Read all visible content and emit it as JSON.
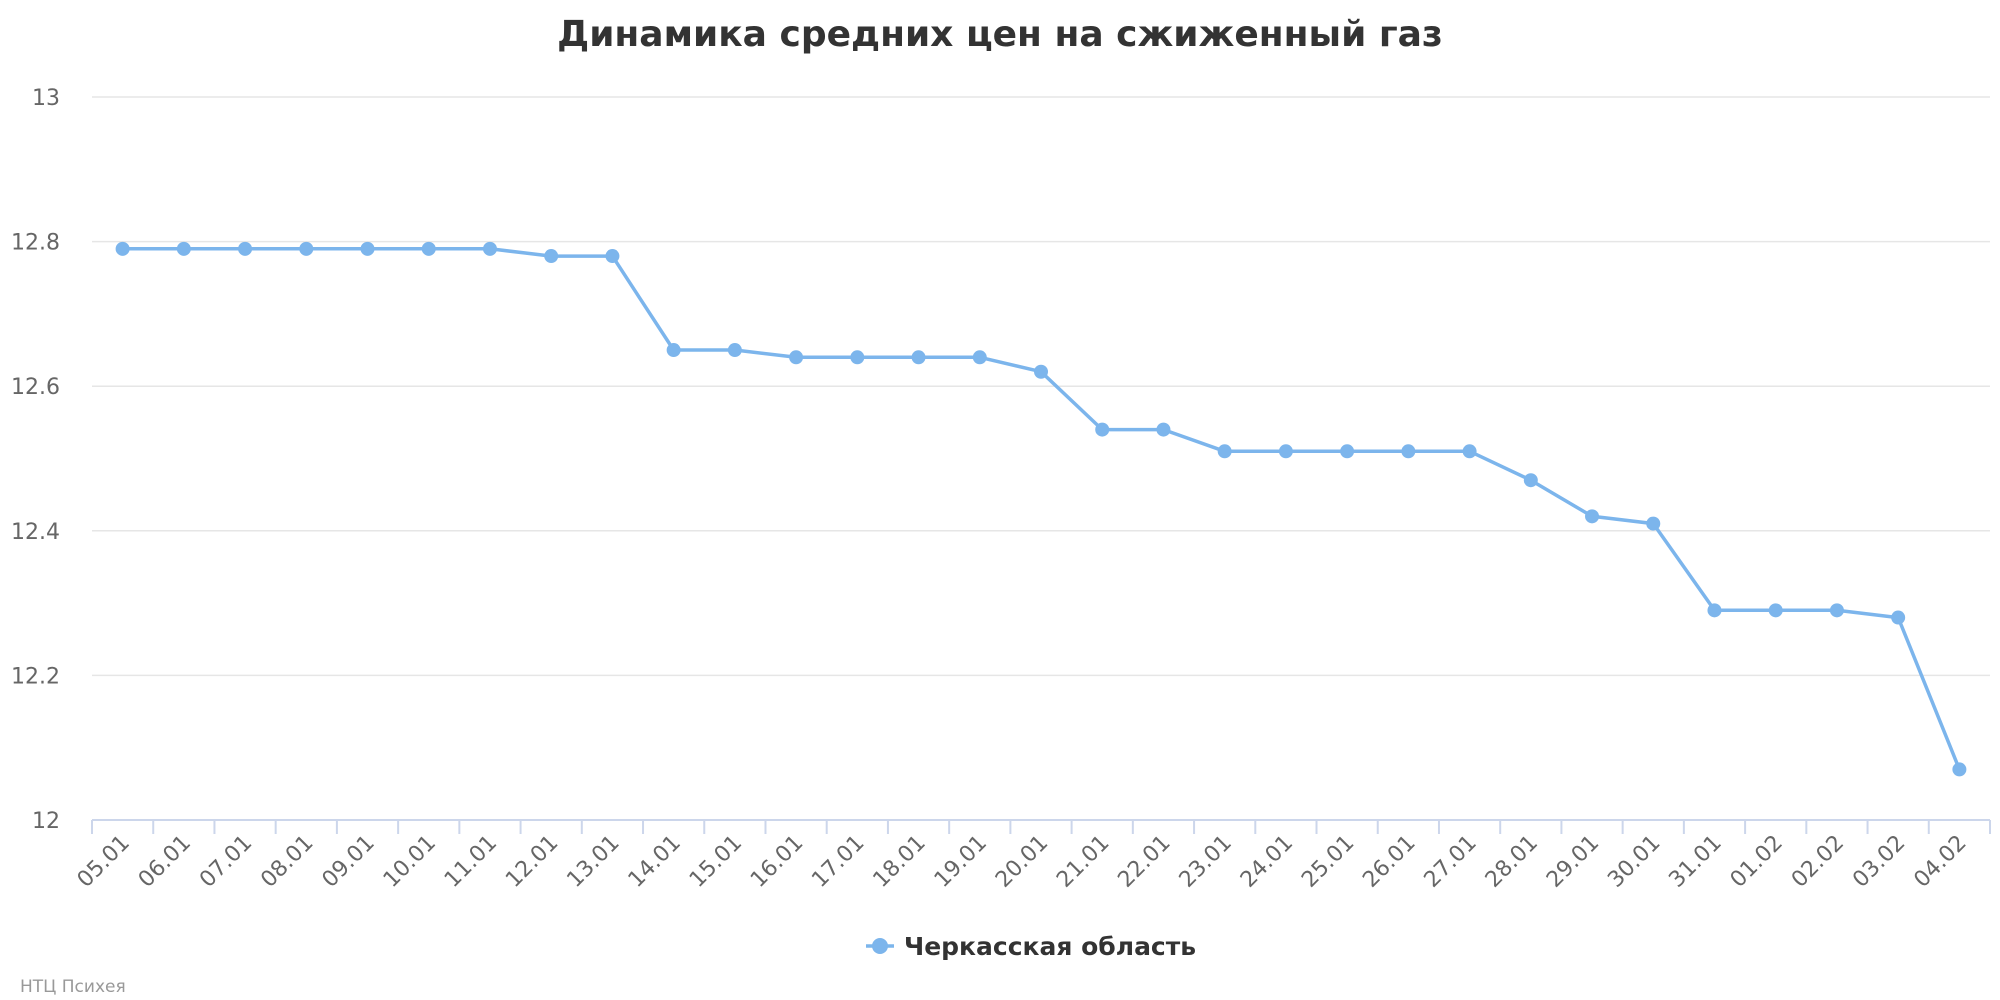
{
  "chart_data": {
    "type": "line",
    "title": "Динамика средних цен на сжиженный газ",
    "xlabel": "",
    "ylabel": "",
    "categories": [
      "05.01",
      "06.01",
      "07.01",
      "08.01",
      "09.01",
      "10.01",
      "11.01",
      "12.01",
      "13.01",
      "14.01",
      "15.01",
      "16.01",
      "17.01",
      "18.01",
      "19.01",
      "20.01",
      "21.01",
      "22.01",
      "23.01",
      "24.01",
      "25.01",
      "26.01",
      "27.01",
      "28.01",
      "29.01",
      "30.01",
      "31.01",
      "01.02",
      "02.02",
      "03.02",
      "04.02"
    ],
    "series": [
      {
        "name": "Черкасская область",
        "color": "#7cb5ec",
        "values": [
          12.79,
          12.79,
          12.79,
          12.79,
          12.79,
          12.79,
          12.79,
          12.78,
          12.78,
          12.65,
          12.65,
          12.64,
          12.64,
          12.64,
          12.64,
          12.62,
          12.54,
          12.54,
          12.51,
          12.51,
          12.51,
          12.51,
          12.51,
          12.47,
          12.42,
          12.41,
          12.29,
          12.29,
          12.29,
          12.28,
          12.07
        ]
      }
    ],
    "ylim": [
      12,
      13
    ],
    "yticks": [
      12,
      12.2,
      12.4,
      12.6,
      12.8,
      13
    ],
    "grid": true,
    "legend_position": "bottom-center"
  },
  "credits": "НТЦ Психея"
}
